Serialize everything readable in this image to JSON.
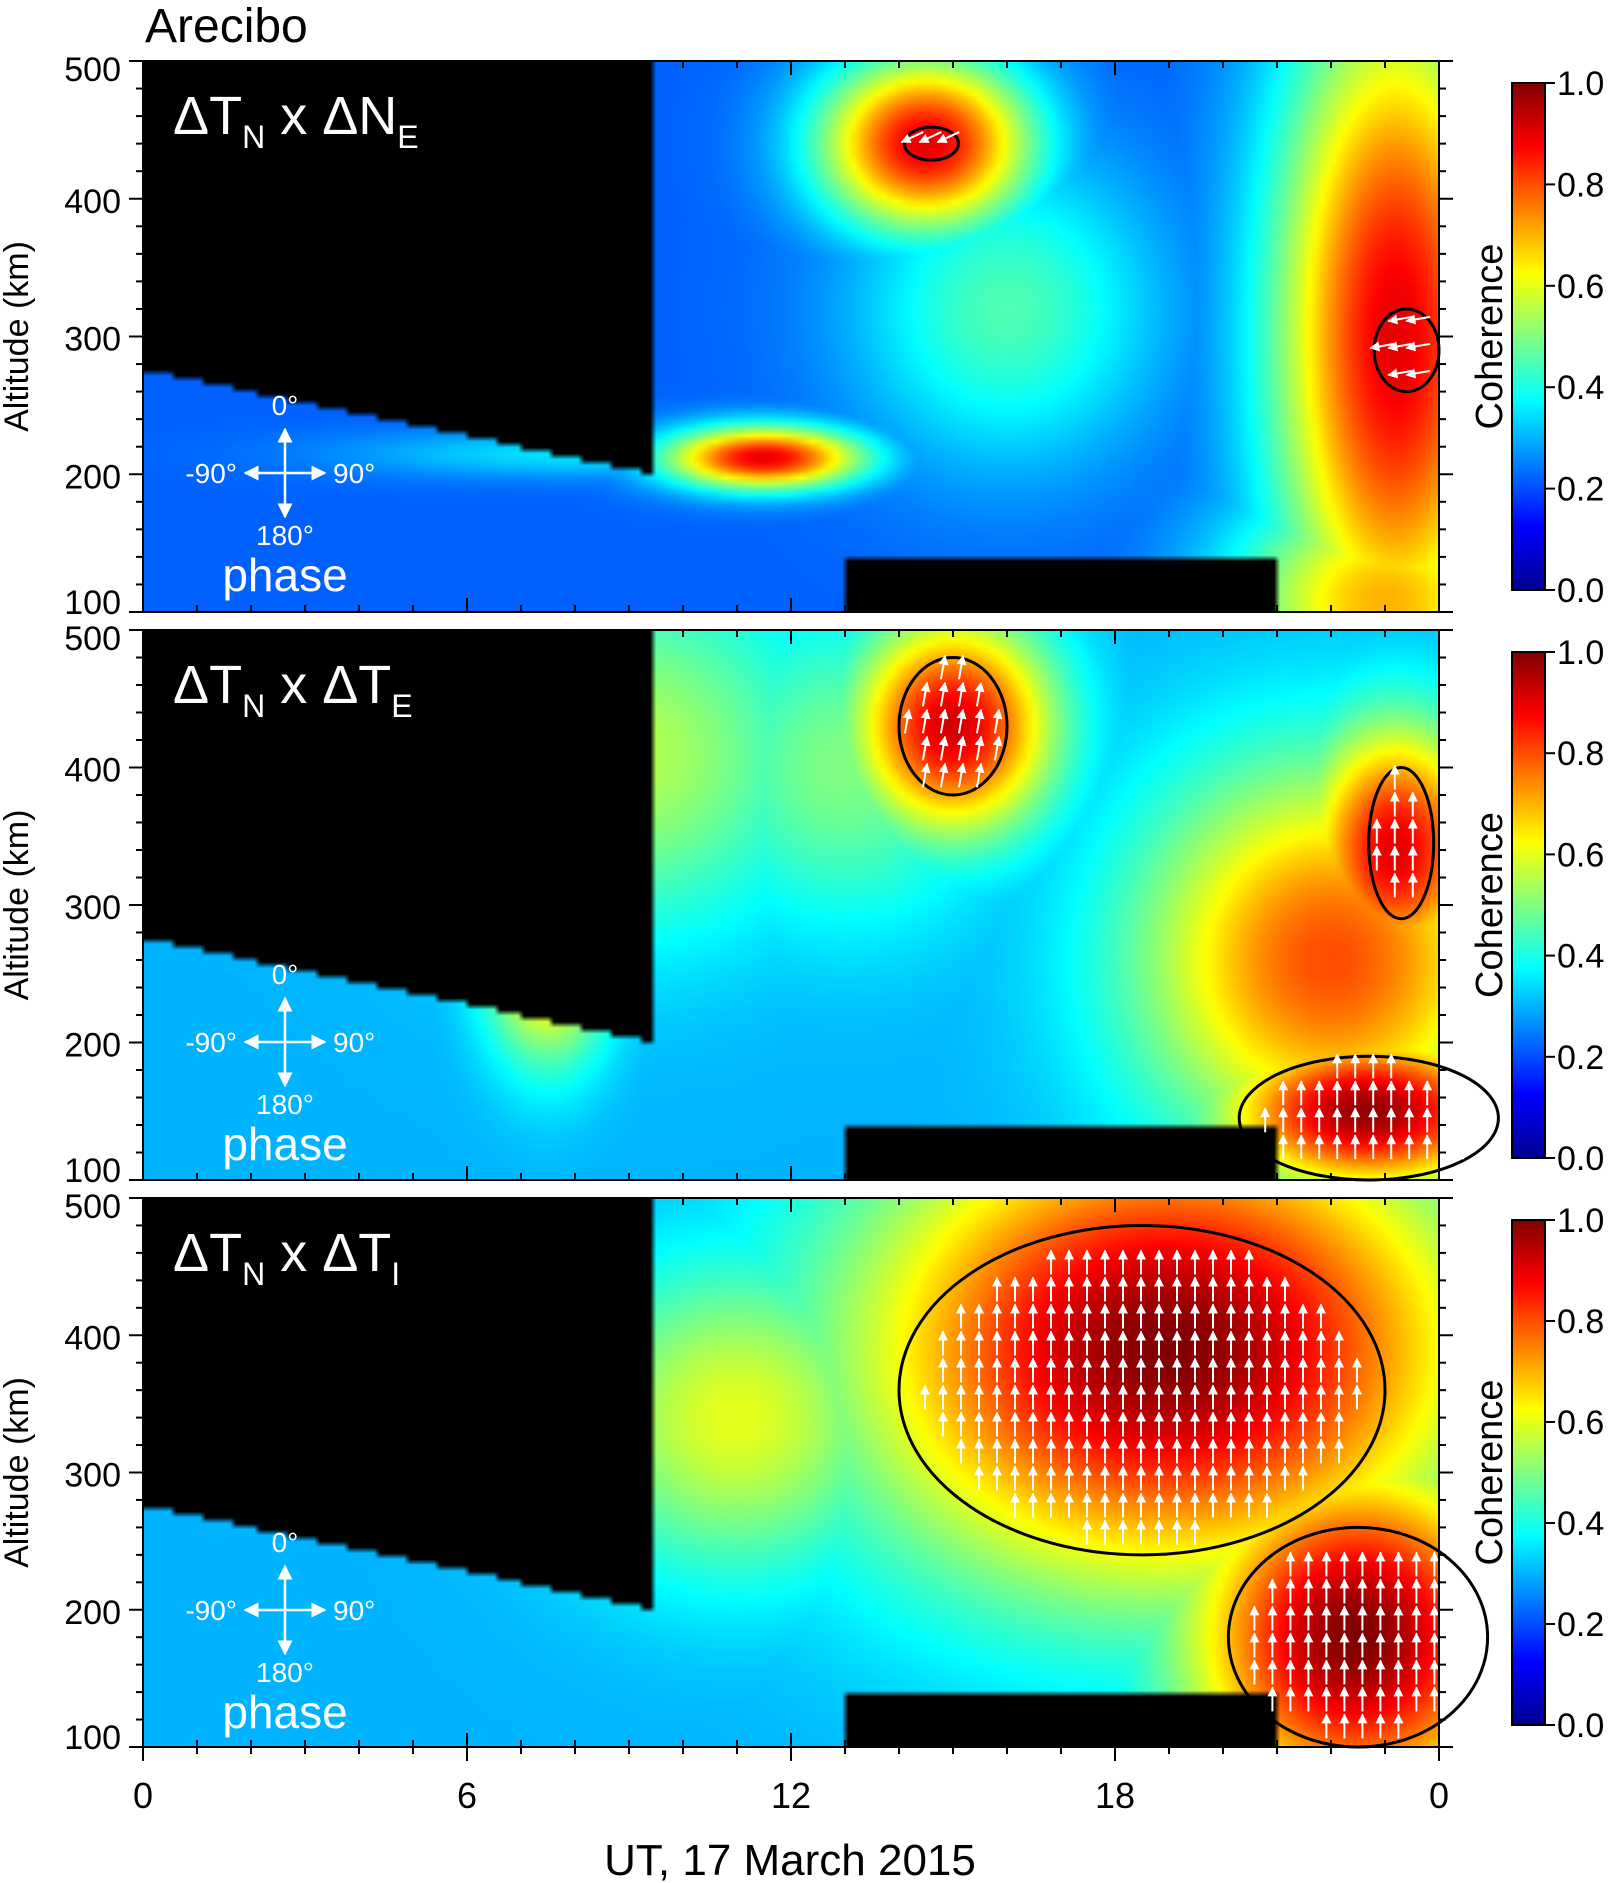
{
  "figure": {
    "station": "Arecibo"
  },
  "x_axis": {
    "label": "UT, 17 March 2015",
    "ticks": [
      "0",
      "6",
      "12",
      "18",
      "0"
    ],
    "tick_hours": [
      0,
      6,
      12,
      18,
      24
    ],
    "range": [
      0,
      24
    ],
    "minor_step_hours": 1
  },
  "y_axis": {
    "label": "Altitude (km)",
    "ticks": [
      "100",
      "200",
      "300",
      "400",
      "500"
    ],
    "tick_values": [
      100,
      200,
      300,
      400,
      500
    ],
    "range": [
      100,
      500
    ]
  },
  "colorbar": {
    "label": "Coherence",
    "ticks": [
      "0.0",
      "0.2",
      "0.4",
      "0.6",
      "0.8",
      "1.0"
    ],
    "tick_values": [
      0,
      0.2,
      0.4,
      0.6,
      0.8,
      1.0
    ],
    "range": [
      0,
      1
    ],
    "stops": [
      "#00008f",
      "#0000ff",
      "#0080ff",
      "#00ffff",
      "#80ff80",
      "#ffff00",
      "#ff8000",
      "#ff0000",
      "#800000"
    ]
  },
  "phase_key": {
    "up": "0°",
    "right": "90°",
    "left": "-90°",
    "down": "180°",
    "caption": "phase"
  },
  "chart_data": [
    {
      "type": "heatmap",
      "panel": "ΔTN x ΔNE",
      "label_parts": {
        "d1": "Δ",
        "v1": "T",
        "s1": "N",
        "x": " x ",
        "d2": "Δ",
        "v2": "N",
        "s2": "E"
      },
      "masked_color": "#000000",
      "coherence_blobs": [
        {
          "t": 14.5,
          "alt": 440,
          "st": 1.4,
          "sa": 45,
          "v": 0.9
        },
        {
          "t": 11.5,
          "alt": 212,
          "st": 1.3,
          "sa": 16,
          "v": 0.9
        },
        {
          "t": 23.2,
          "alt": 300,
          "st": 1.6,
          "sa": 180,
          "v": 0.9
        },
        {
          "t": 23.0,
          "alt": 110,
          "st": 2.0,
          "sa": 60,
          "v": 0.7
        },
        {
          "t": 16.0,
          "alt": 320,
          "st": 2.0,
          "sa": 80,
          "v": 0.45
        },
        {
          "t": 8.0,
          "alt": 215,
          "st": 3.0,
          "sa": 12,
          "v": 0.35
        },
        {
          "t": 17.5,
          "alt": 190,
          "st": 3.0,
          "sa": 30,
          "v": 0.25
        }
      ],
      "base_coherence": 0.22,
      "significant_regions": [
        {
          "t": 14.6,
          "alt": 440,
          "rt": 0.5,
          "ra": 12
        },
        {
          "t": 23.4,
          "alt": 290,
          "rt": 0.6,
          "ra": 30
        }
      ],
      "phase_arrows_deg": [
        -115,
        -100
      ]
    },
    {
      "type": "heatmap",
      "panel": "ΔTN x ΔTE",
      "label_parts": {
        "d1": "Δ",
        "v1": "T",
        "s1": "N",
        "x": " x ",
        "d2": "Δ",
        "v2": "T",
        "s2": "E"
      },
      "masked_color": "#000000",
      "coherence_blobs": [
        {
          "t": 15.0,
          "alt": 430,
          "st": 1.3,
          "sa": 55,
          "v": 0.92
        },
        {
          "t": 23.2,
          "alt": 340,
          "st": 1.2,
          "sa": 65,
          "v": 0.9
        },
        {
          "t": 22.7,
          "alt": 150,
          "st": 1.9,
          "sa": 40,
          "v": 0.98
        },
        {
          "t": 22.0,
          "alt": 260,
          "st": 2.5,
          "sa": 100,
          "v": 0.8
        },
        {
          "t": 7.5,
          "alt": 280,
          "st": 0.8,
          "sa": 60,
          "v": 0.8
        },
        {
          "t": 9.0,
          "alt": 410,
          "st": 2.5,
          "sa": 90,
          "v": 0.55
        },
        {
          "t": 13.0,
          "alt": 400,
          "st": 2.0,
          "sa": 80,
          "v": 0.5
        }
      ],
      "base_coherence": 0.3,
      "significant_regions": [
        {
          "t": 15.0,
          "alt": 430,
          "rt": 1.0,
          "ra": 50
        },
        {
          "t": 23.3,
          "alt": 345,
          "rt": 0.6,
          "ra": 55
        },
        {
          "t": 22.7,
          "alt": 145,
          "rt": 2.4,
          "ra": 45
        }
      ],
      "phase_arrows_deg": [
        10,
        0,
        0
      ]
    },
    {
      "type": "heatmap",
      "panel": "ΔTN x ΔTI",
      "label_parts": {
        "d1": "Δ",
        "v1": "T",
        "s1": "N",
        "x": " x ",
        "d2": "Δ",
        "v2": "T",
        "s2": "I"
      },
      "masked_color": "#000000",
      "coherence_blobs": [
        {
          "t": 19.0,
          "alt": 390,
          "st": 4.0,
          "sa": 120,
          "v": 1.0
        },
        {
          "t": 22.5,
          "alt": 180,
          "st": 2.2,
          "sa": 90,
          "v": 1.0
        },
        {
          "t": 11.0,
          "alt": 340,
          "st": 2.2,
          "sa": 80,
          "v": 0.6
        },
        {
          "t": 8.5,
          "alt": 400,
          "st": 2.0,
          "sa": 60,
          "v": 0.4
        }
      ],
      "base_coherence": 0.3,
      "significant_regions": [
        {
          "t": 18.5,
          "alt": 360,
          "rt": 4.5,
          "ra": 120
        },
        {
          "t": 22.5,
          "alt": 180,
          "rt": 2.4,
          "ra": 80
        }
      ],
      "phase_arrows_deg": [
        0,
        0
      ]
    }
  ]
}
